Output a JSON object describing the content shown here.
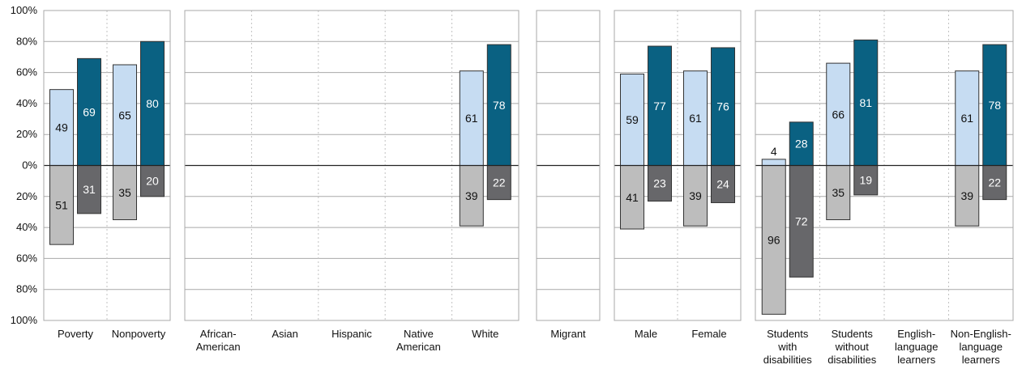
{
  "chart_data": {
    "type": "bar",
    "subtype": "diverging-stacked-paired",
    "ylim": [
      -100,
      100
    ],
    "y_ticks": [
      {
        "value": 100,
        "label": "100%"
      },
      {
        "value": 80,
        "label": "80%"
      },
      {
        "value": 60,
        "label": "60%"
      },
      {
        "value": 40,
        "label": "40%"
      },
      {
        "value": 20,
        "label": "20%"
      },
      {
        "value": 0,
        "label": "0%"
      },
      {
        "value": -20,
        "label": "20%"
      },
      {
        "value": -40,
        "label": "40%"
      },
      {
        "value": -60,
        "label": "60%"
      },
      {
        "value": -80,
        "label": "80%"
      },
      {
        "value": -100,
        "label": "100%"
      }
    ],
    "grid": true,
    "legend": "none",
    "colors": {
      "bar1_up": "#c6dcf2",
      "bar2_up": "#0a6182",
      "bar1_down": "#bdbdbd",
      "bar2_down": "#67676a",
      "gridline": "#a9a9a9",
      "divider": "#c2c2c2",
      "zero_line": "#222222"
    },
    "panels": [
      {
        "categories": [
          {
            "label": [
              "Poverty"
            ],
            "bars": [
              {
                "up": 49,
                "down": 51
              },
              {
                "up": 69,
                "down": 31
              }
            ]
          },
          {
            "label": [
              "Nonpoverty"
            ],
            "bars": [
              {
                "up": 65,
                "down": 35
              },
              {
                "up": 80,
                "down": 20
              }
            ]
          }
        ]
      },
      {
        "categories": [
          {
            "label": [
              "African-",
              "American"
            ],
            "bars": []
          },
          {
            "label": [
              "Asian"
            ],
            "bars": []
          },
          {
            "label": [
              "Hispanic"
            ],
            "bars": []
          },
          {
            "label": [
              "Native",
              "American"
            ],
            "bars": []
          },
          {
            "label": [
              "White"
            ],
            "bars": [
              {
                "up": 61,
                "down": 39
              },
              {
                "up": 78,
                "down": 22
              }
            ]
          }
        ]
      },
      {
        "categories": [
          {
            "label": [
              "Migrant"
            ],
            "bars": []
          }
        ]
      },
      {
        "categories": [
          {
            "label": [
              "Male"
            ],
            "bars": [
              {
                "up": 59,
                "down": 41
              },
              {
                "up": 77,
                "down": 23
              }
            ]
          },
          {
            "label": [
              "Female"
            ],
            "bars": [
              {
                "up": 61,
                "down": 39
              },
              {
                "up": 76,
                "down": 24
              }
            ]
          }
        ]
      },
      {
        "categories": [
          {
            "label": [
              "Students",
              "with",
              "disabilities"
            ],
            "bars": [
              {
                "up": 4,
                "down": 96
              },
              {
                "up": 28,
                "down": 72
              }
            ]
          },
          {
            "label": [
              "Students",
              "without",
              "disabilities"
            ],
            "bars": [
              {
                "up": 66,
                "down": 35
              },
              {
                "up": 81,
                "down": 19
              }
            ]
          },
          {
            "label": [
              "English-",
              "language",
              "learners"
            ],
            "bars": []
          },
          {
            "label": [
              "Non-English-",
              "language",
              "learners"
            ],
            "bars": [
              {
                "up": 61,
                "down": 39
              },
              {
                "up": 78,
                "down": 22
              }
            ]
          }
        ]
      }
    ]
  }
}
